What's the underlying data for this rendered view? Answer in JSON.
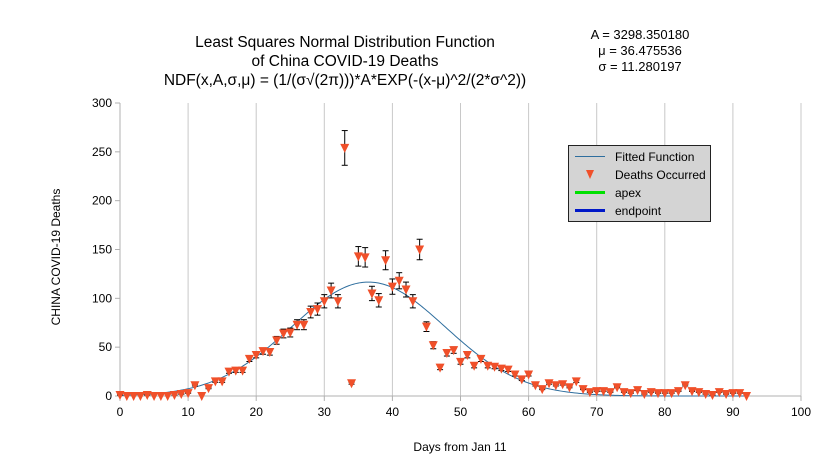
{
  "title": {
    "line1": "Least Squares Normal Distribution Function",
    "line2": "of China COVID-19 Deaths",
    "line3": "NDF(x,A,σ,μ) = (1/(σ√(2π)))*A*EXP(-(x-μ)^2/(2*σ^2))"
  },
  "params": {
    "A": "A = 3298.350180",
    "mu": "μ = 36.475536",
    "sigma": "σ = 11.280197"
  },
  "colors": {
    "fitted": "#2e6e9e",
    "marker": "#f0502a",
    "apex": "#00e000",
    "endpoint": "#0018c8",
    "grid": "#c8c8c8"
  },
  "legend": {
    "fitted": "Fitted Function",
    "deaths": "Deaths Occurred",
    "apex": "apex",
    "endpoint": "endpoint"
  },
  "chart_data": {
    "type": "scatter",
    "xlabel": "Days from Jan 11",
    "ylabel": "CHINA COVID-19 Deaths",
    "xlim": [
      0,
      100
    ],
    "ylim": [
      0,
      300
    ],
    "xticks": [
      0,
      10,
      20,
      30,
      40,
      50,
      60,
      70,
      80,
      90,
      100
    ],
    "yticks": [
      0,
      50,
      100,
      150,
      200,
      250,
      300
    ],
    "grid": "vertical",
    "legend_position": "top-right",
    "fit": {
      "A": 3298.35018,
      "mu": 36.475536,
      "sigma": 11.280197
    },
    "error_fraction": 0.07,
    "series": [
      {
        "name": "Deaths Occurred",
        "marker": "triangle-down",
        "x": [
          0,
          1,
          2,
          3,
          4,
          5,
          6,
          7,
          8,
          9,
          10,
          11,
          12,
          13,
          14,
          15,
          16,
          17,
          18,
          19,
          20,
          21,
          22,
          23,
          24,
          25,
          26,
          27,
          28,
          29,
          30,
          31,
          32,
          33,
          34,
          35,
          36,
          37,
          38,
          39,
          40,
          41,
          42,
          43,
          44,
          45,
          46,
          47,
          48,
          49,
          50,
          51,
          52,
          53,
          54,
          55,
          56,
          57,
          58,
          59,
          60,
          61,
          62,
          63,
          64,
          65,
          66,
          67,
          68,
          69,
          70,
          71,
          72,
          73,
          74,
          75,
          76,
          77,
          78,
          79,
          80,
          81,
          82,
          83,
          84,
          85,
          86,
          87,
          88,
          89,
          90,
          91,
          92
        ],
        "y": [
          1,
          0,
          0,
          0,
          1,
          0,
          0,
          0,
          1,
          2,
          3,
          11,
          0,
          8,
          15,
          15,
          25,
          26,
          26,
          38,
          42,
          46,
          45,
          57,
          64,
          65,
          73,
          73,
          86,
          89,
          97,
          108,
          97,
          254,
          13,
          143,
          142,
          105,
          98,
          139,
          112,
          118,
          109,
          97,
          150,
          71,
          52,
          29,
          44,
          47,
          35,
          42,
          31,
          38,
          31,
          30,
          28,
          27,
          22,
          17,
          22,
          11,
          7,
          13,
          11,
          12,
          9,
          15,
          7,
          4,
          5,
          5,
          4,
          9,
          4,
          3,
          6,
          2,
          4,
          3,
          3,
          3,
          5,
          11,
          5,
          4,
          2,
          1,
          4,
          2,
          3,
          3,
          0
        ]
      }
    ]
  }
}
